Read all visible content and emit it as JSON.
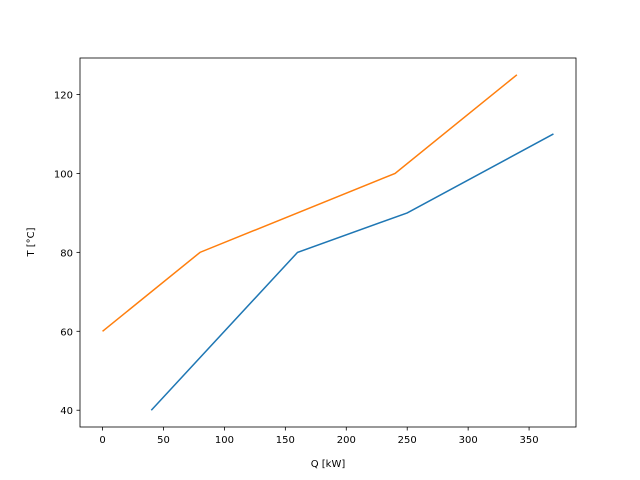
{
  "chart_data": {
    "type": "line",
    "xlabel": "Q [kW]",
    "ylabel": "T [°C]",
    "series": [
      {
        "color": "#1f77b4",
        "x": [
          40,
          160,
          250,
          370
        ],
        "values": [
          40,
          80,
          90,
          110
        ]
      },
      {
        "color": "#ff7f0e",
        "x": [
          0,
          80,
          240,
          340
        ],
        "values": [
          60,
          80,
          100,
          125
        ]
      }
    ],
    "xlim": [
      -18.5,
      388.5
    ],
    "xticks": [
      0,
      50,
      100,
      150,
      200,
      250,
      300,
      350
    ],
    "ylim": [
      35.75,
      129.25
    ],
    "yticks": [
      40,
      60,
      80,
      100,
      120
    ]
  }
}
